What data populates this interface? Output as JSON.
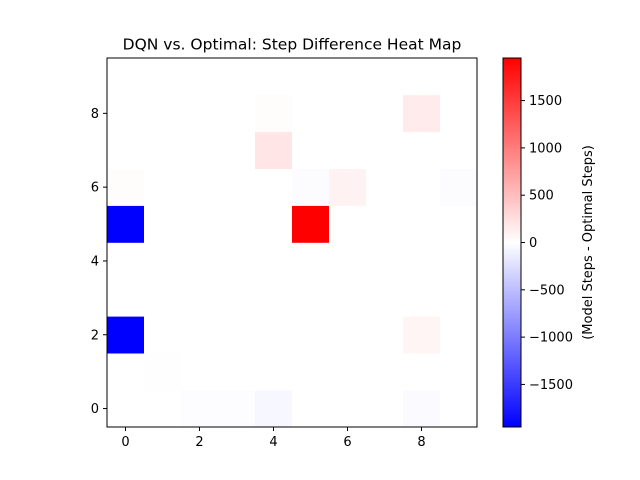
{
  "chart_data": {
    "type": "heatmap",
    "title": "DQN vs. Optimal: Step Difference Heat Map",
    "xlabel": "",
    "ylabel": "",
    "grid": false,
    "colormap": "bwr",
    "colors": {
      "low": "#0000ff",
      "mid": "#ffffff",
      "high": "#ff0000"
    },
    "x_range": [
      -0.5,
      9.5
    ],
    "y_range": [
      -0.5,
      9.5
    ],
    "x_ticks": [
      "0",
      "2",
      "4",
      "6",
      "8"
    ],
    "y_ticks": [
      "0",
      "2",
      "4",
      "6",
      "8"
    ],
    "rows": 10,
    "cols": 10,
    "vmin": -1950,
    "vmax": 1950,
    "values": [
      [
        0,
        0,
        -15,
        -15,
        -60,
        0,
        0,
        0,
        -30,
        0
      ],
      [
        0,
        5,
        0,
        0,
        0,
        0,
        0,
        0,
        0,
        0
      ],
      [
        -1950,
        0,
        0,
        0,
        0,
        0,
        0,
        0,
        80,
        0
      ],
      [
        0,
        0,
        0,
        0,
        0,
        0,
        0,
        0,
        0,
        0
      ],
      [
        0,
        0,
        0,
        0,
        0,
        0,
        0,
        0,
        0,
        0
      ],
      [
        -1950,
        0,
        0,
        0,
        0,
        1950,
        0,
        0,
        0,
        0
      ],
      [
        20,
        0,
        0,
        0,
        0,
        -20,
        100,
        0,
        0,
        -20
      ],
      [
        0,
        0,
        0,
        0,
        200,
        0,
        0,
        0,
        0,
        0
      ],
      [
        0,
        0,
        0,
        0,
        20,
        0,
        0,
        0,
        150,
        0
      ],
      [
        0,
        0,
        0,
        0,
        0,
        0,
        0,
        0,
        0,
        0
      ]
    ],
    "colorbar": {
      "label": "(Model Steps - Optimal Steps)",
      "ticks": [
        -1500,
        -1000,
        -500,
        0,
        500,
        1000,
        1500
      ],
      "tick_labels": [
        "−1500",
        "−1000",
        "−500",
        "0",
        "500",
        "1000",
        "1500"
      ]
    }
  }
}
